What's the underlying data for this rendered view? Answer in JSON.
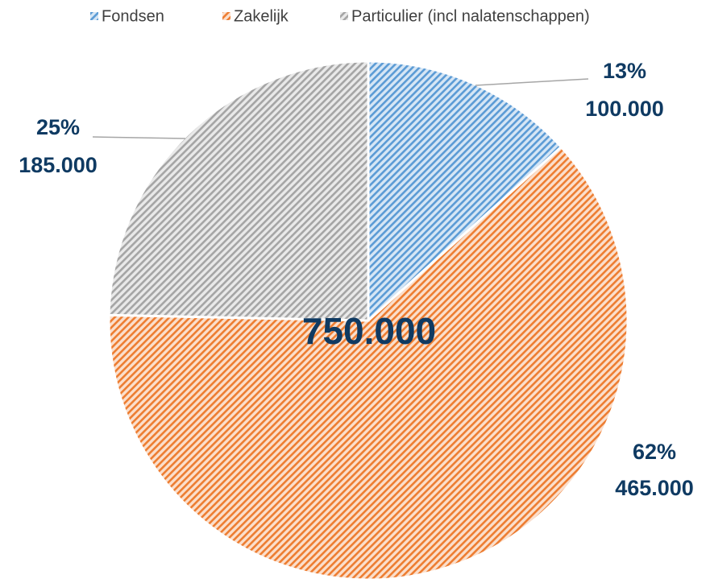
{
  "chart_data": {
    "type": "pie",
    "categories": [
      "Fondsen",
      "Zakelijk",
      "Particulier (incl nalatenschappen)"
    ],
    "values": [
      100000,
      465000,
      185000
    ],
    "value_labels": [
      "100.000",
      "465.000",
      "185.000"
    ],
    "percent_labels": [
      "13%",
      "62%",
      "25%"
    ],
    "colors": [
      "#5b9bd5",
      "#ed7d31",
      "#a5a5a5"
    ],
    "center_label": "750.000",
    "legend": "top"
  }
}
